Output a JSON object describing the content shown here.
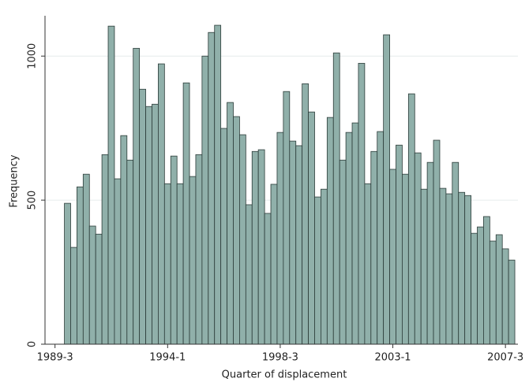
{
  "chart_data": {
    "type": "histogram",
    "xlabel": "Quarter of displacement",
    "ylabel": "Frequency",
    "bins": [
      119.5,
      120.5,
      121.5,
      122.5,
      123.5,
      124.5,
      125.5,
      126.5,
      127.5,
      128.5,
      129.5,
      130.5,
      131.5,
      132.5,
      133.5,
      134.5,
      135.5,
      136.5,
      137.5,
      138.5,
      139.5,
      140.5,
      141.5,
      142.5,
      143.5,
      144.5,
      145.5,
      146.5,
      147.5,
      148.5,
      149.5,
      150.5,
      151.5,
      152.5,
      153.5,
      154.5,
      155.5,
      156.5,
      157.5,
      158.5,
      159.5,
      160.5,
      161.5,
      162.5,
      163.5,
      164.5,
      165.5,
      166.5,
      167.5,
      168.5,
      169.5,
      170.5,
      171.5,
      172.5,
      173.5,
      174.5,
      175.5,
      176.5,
      177.5,
      178.5,
      179.5,
      180.5,
      181.5,
      182.5,
      183.5,
      184.5,
      185.5,
      186.5,
      187.5,
      188.5,
      189.5,
      190.5,
      191.5
    ],
    "values": [
      489,
      336,
      546,
      590,
      410,
      382,
      658,
      1104,
      574,
      724,
      639,
      1027,
      885,
      825,
      833,
      973,
      557,
      653,
      557,
      907,
      582,
      658,
      1000,
      1082,
      1107,
      749,
      839,
      790,
      727,
      484,
      669,
      675,
      454,
      555,
      735,
      877,
      705,
      689,
      904,
      806,
      511,
      538,
      787,
      1011,
      639,
      735,
      768,
      975,
      557,
      669,
      738,
      1074,
      607,
      691,
      590,
      869,
      664,
      538,
      631,
      708,
      541,
      522,
      631,
      527,
      516,
      385,
      407,
      443,
      358,
      380,
      331,
      292
    ],
    "color": "#90b0aa",
    "xlim": [
      116.4,
      192
    ],
    "ylim": [
      0,
      1140
    ],
    "xticks": [
      {
        "value": 118,
        "label": "1989-3"
      },
      {
        "value": 136,
        "label": "1994-1"
      },
      {
        "value": 154,
        "label": "1998-3"
      },
      {
        "value": 172,
        "label": "2003-1"
      },
      {
        "value": 190,
        "label": "2007-3"
      }
    ],
    "yticks": [
      0,
      500,
      1000
    ],
    "grid": true
  }
}
